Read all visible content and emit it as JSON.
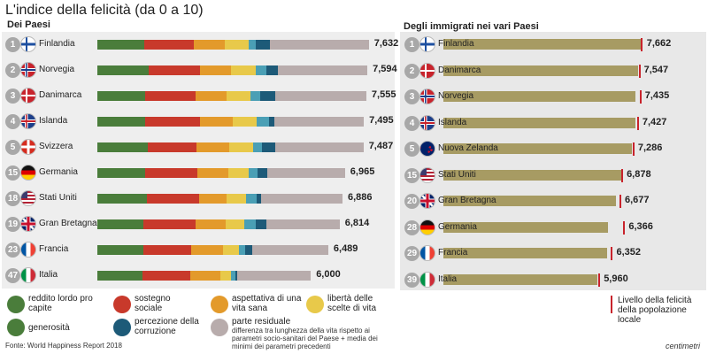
{
  "title": "L'indice della felicità (da 0 a 10)",
  "left_subtitle": "Dei Paesi",
  "right_subtitle": "Degli immigrati nei vari Paesi",
  "colors": {
    "reddito": "#4a7d3b",
    "sostegno": "#c8392b",
    "aspettativa": "#e39a2b",
    "liberta": "#e8c94a",
    "generosita": "#4a9fb5",
    "percezione": "#1d5a78",
    "residuale": "#b8acac",
    "immigrati_bar": "#a79b63",
    "marker": "#c8232c"
  },
  "legend": {
    "reddito": "reddito lordo pro capite",
    "sostegno": "sostegno sociale",
    "aspettativa": "aspettativa di una vita sana",
    "liberta": "libertà delle scelte di vita",
    "generosita": "generosità",
    "percezione": "percezione della corruzione",
    "residuale": "parte residuale",
    "residuale_note": "differenza tra lunghezza della vita rispetto ai parametri socio-sanitari del Paese + media dei minimi dei parametri precedenti",
    "marker_label": "Livello della felicità della popolazione locale"
  },
  "source": "Fonte: World Happiness Report 2018",
  "brand": "centimetri",
  "chart_data": [
    {
      "type": "bar",
      "subtitle": "Dei Paesi",
      "stacked": true,
      "ylim": [
        0,
        8
      ],
      "countries": [
        {
          "rank": "1",
          "name": "Finlandia",
          "flag": "fi",
          "total": 7.632,
          "label": "7,632",
          "components": [
            1.31,
            1.4,
            0.87,
            0.68,
            0.2,
            0.39,
            2.78
          ]
        },
        {
          "rank": "2",
          "name": "Norvegia",
          "flag": "no",
          "total": 7.594,
          "label": "7,594",
          "components": [
            1.45,
            1.43,
            0.88,
            0.69,
            0.29,
            0.34,
            2.51
          ]
        },
        {
          "rank": "3",
          "name": "Danimarca",
          "flag": "dk",
          "total": 7.555,
          "label": "7,555",
          "components": [
            1.35,
            1.42,
            0.87,
            0.66,
            0.28,
            0.41,
            2.57
          ]
        },
        {
          "rank": "4",
          "name": "Islanda",
          "flag": "is",
          "total": 7.495,
          "label": "7,495",
          "components": [
            1.34,
            1.55,
            0.91,
            0.68,
            0.35,
            0.14,
            2.52
          ]
        },
        {
          "rank": "5",
          "name": "Svizzera",
          "flag": "ch",
          "total": 7.487,
          "label": "7,487",
          "components": [
            1.42,
            1.36,
            0.93,
            0.66,
            0.26,
            0.36,
            2.49
          ]
        },
        {
          "rank": "15",
          "name": "Germania",
          "flag": "de",
          "total": 6.965,
          "label": "6,965",
          "components": [
            1.34,
            1.47,
            0.86,
            0.59,
            0.24,
            0.27,
            2.19
          ]
        },
        {
          "rank": "18",
          "name": "Stati Uniti",
          "flag": "us",
          "total": 6.886,
          "label": "6,886",
          "components": [
            1.4,
            1.47,
            0.77,
            0.55,
            0.29,
            0.13,
            2.28
          ]
        },
        {
          "rank": "19",
          "name": "Gran Bretagna",
          "flag": "gb",
          "total": 6.814,
          "label": "6,814",
          "components": [
            1.3,
            1.45,
            0.86,
            0.53,
            0.32,
            0.3,
            2.05
          ]
        },
        {
          "rank": "23",
          "name": "Francia",
          "flag": "fr",
          "total": 6.489,
          "label": "6,489",
          "components": [
            1.29,
            1.35,
            0.89,
            0.45,
            0.17,
            0.21,
            2.13
          ]
        },
        {
          "rank": "47",
          "name": "Italia",
          "flag": "it",
          "total": 6.0,
          "label": "6,000",
          "components": [
            1.26,
            1.36,
            0.85,
            0.29,
            0.13,
            0.03,
            2.08
          ]
        }
      ]
    },
    {
      "type": "bar",
      "subtitle": "Degli immigrati nei vari Paesi",
      "ylim": [
        0,
        8
      ],
      "countries": [
        {
          "rank": "1",
          "name": "Finlandia",
          "flag": "fi",
          "value": 7.662,
          "label": "7,662",
          "local": 7.632
        },
        {
          "rank": "2",
          "name": "Danimarca",
          "flag": "dk",
          "value": 7.547,
          "label": "7,547",
          "local": 7.555
        },
        {
          "rank": "3",
          "name": "Norvegia",
          "flag": "no",
          "value": 7.435,
          "label": "7,435",
          "local": 7.594
        },
        {
          "rank": "4",
          "name": "Islanda",
          "flag": "is",
          "value": 7.427,
          "label": "7,427",
          "local": 7.495
        },
        {
          "rank": "5",
          "name": "Nuova Zelanda",
          "flag": "nz",
          "value": 7.286,
          "label": "7,286",
          "local": 7.324
        },
        {
          "rank": "15",
          "name": "Stati Uniti",
          "flag": "us",
          "value": 6.878,
          "label": "6,878",
          "local": 6.886
        },
        {
          "rank": "20",
          "name": "Gran Bretagna",
          "flag": "gb",
          "value": 6.677,
          "label": "6,677",
          "local": 6.814
        },
        {
          "rank": "28",
          "name": "Germania",
          "flag": "de",
          "value": 6.366,
          "label": "6,366",
          "local": 6.965
        },
        {
          "rank": "29",
          "name": "Francia",
          "flag": "fr",
          "value": 6.352,
          "label": "6,352",
          "local": 6.489
        },
        {
          "rank": "39",
          "name": "Italia",
          "flag": "it",
          "value": 5.96,
          "label": "5,960",
          "local": 6.0
        }
      ]
    }
  ]
}
